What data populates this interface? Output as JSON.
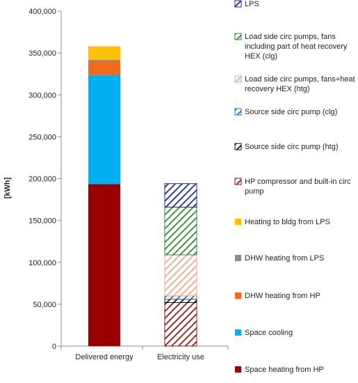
{
  "chart_data": {
    "type": "bar",
    "stacked": true,
    "ylabel": "[kWh]",
    "ylim": [
      0,
      400000
    ],
    "yticks": [
      0,
      50000,
      100000,
      150000,
      200000,
      250000,
      300000,
      350000,
      400000
    ],
    "ytick_labels": [
      "0",
      "50,000",
      "100,000",
      "150,000",
      "200,000",
      "250,000",
      "300,000",
      "350,000",
      "400,000"
    ],
    "grid": false,
    "legend_position": "right",
    "categories": [
      "Delivered energy",
      "Electricity use"
    ],
    "series": [
      {
        "name": "Space heating from HP",
        "values": [
          193500,
          0
        ],
        "color": "#990000",
        "fill": "solid"
      },
      {
        "name": "Space cooling",
        "values": [
          130500,
          0
        ],
        "color": "#00b0f0",
        "fill": "solid"
      },
      {
        "name": "DHW heating from HP",
        "values": [
          16500,
          0
        ],
        "color": "#f26a1b",
        "fill": "solid"
      },
      {
        "name": "DHW heating from LPS",
        "values": [
          1500,
          0
        ],
        "color": "#8c8c8c",
        "fill": "solid"
      },
      {
        "name": "Heating to bldg from LPS",
        "values": [
          16000,
          0
        ],
        "color": "#ffc000",
        "fill": "solid"
      },
      {
        "name": "HP compressor and built-in circ pump",
        "values": [
          0,
          52000
        ],
        "color": "#8b1a1a",
        "fill": "hatch"
      },
      {
        "name": "Source side circ pump (htg)",
        "values": [
          0,
          4000
        ],
        "color": "#111111",
        "fill": "hatch"
      },
      {
        "name": "Source side circ pump (clg)",
        "values": [
          0,
          4000
        ],
        "color": "#1e6fd6",
        "fill": "hatch"
      },
      {
        "name": "Load side circ pumps, fans+heat recovery HEX (htg)",
        "values": [
          0,
          49000
        ],
        "color": "#f4a582",
        "fill": "hatch"
      },
      {
        "name": "Load side circ pumps, fans including part of heat recovery HEX (clg)",
        "values": [
          0,
          57000
        ],
        "color": "#2e8b2e",
        "fill": "hatch"
      },
      {
        "name": "LPS",
        "values": [
          0,
          28000
        ],
        "color": "#1f2a8c",
        "fill": "hatch"
      }
    ],
    "legend_order": [
      {
        "lines": [
          "LPS"
        ],
        "color": "#1f2a8c",
        "fill": "hatch"
      },
      {
        "lines": [
          "Load side circ pumps, fans",
          "including part of heat recovery",
          "HEX (clg)"
        ],
        "color": "#2e8b2e",
        "fill": "hatch"
      },
      {
        "lines": [
          "Load side circ pumps, fans+heat",
          "recovery HEX (htg)"
        ],
        "color": "#f4a582",
        "fill": "hatch"
      },
      {
        "lines": [
          "Source side circ pump (clg)"
        ],
        "color": "#1e6fd6",
        "fill": "hatch"
      },
      {
        "lines": [
          "Source side circ pump (htg)"
        ],
        "color": "#111111",
        "fill": "hatch"
      },
      {
        "lines": [
          "HP compressor and built-in circ",
          "pump"
        ],
        "color": "#8b1a1a",
        "fill": "hatch"
      },
      {
        "lines": [
          "Heating to bldg from LPS"
        ],
        "color": "#ffc000",
        "fill": "solid"
      },
      {
        "lines": [
          "DHW heating from LPS"
        ],
        "color": "#8c8c8c",
        "fill": "solid"
      },
      {
        "lines": [
          "DHW heating from HP"
        ],
        "color": "#f26a1b",
        "fill": "solid"
      },
      {
        "lines": [
          "Space cooling"
        ],
        "color": "#00b0f0",
        "fill": "solid"
      },
      {
        "lines": [
          "Space heating from HP"
        ],
        "color": "#990000",
        "fill": "solid"
      }
    ]
  }
}
